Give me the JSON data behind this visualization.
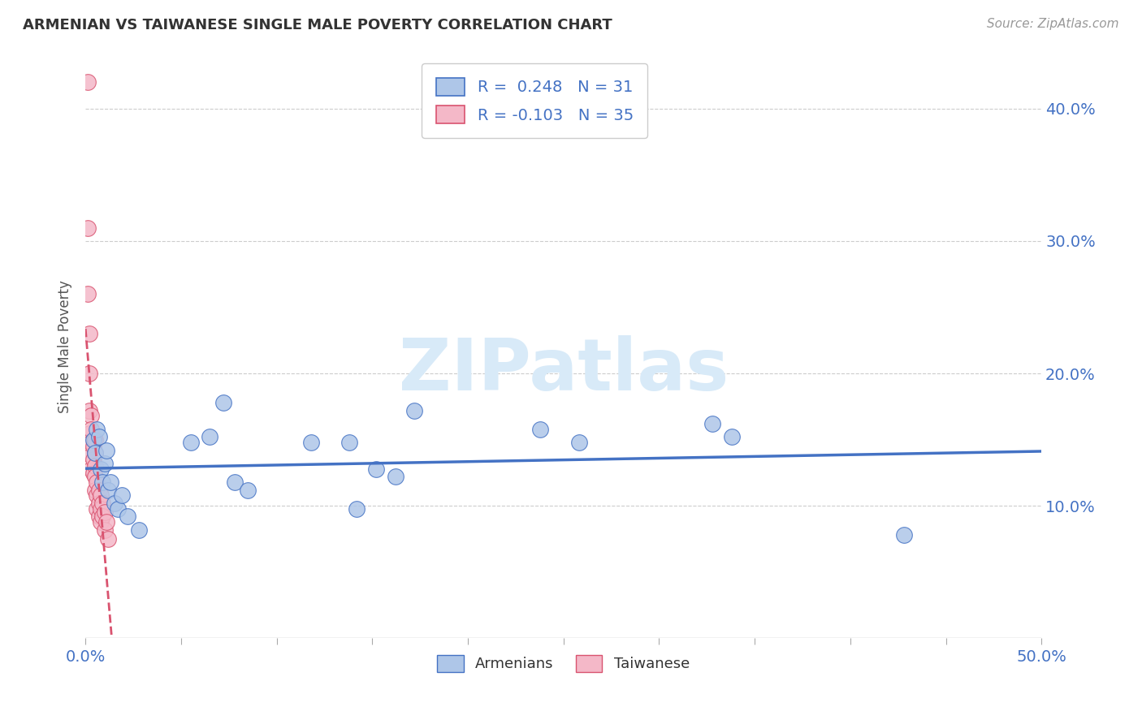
{
  "title": "ARMENIAN VS TAIWANESE SINGLE MALE POVERTY CORRELATION CHART",
  "source": "Source: ZipAtlas.com",
  "ylabel": "Single Male Poverty",
  "xlim": [
    0.0,
    0.5
  ],
  "ylim": [
    0.0,
    0.44
  ],
  "yticks": [
    0.0,
    0.1,
    0.2,
    0.3,
    0.4
  ],
  "ytick_labels": [
    "",
    "10.0%",
    "20.0%",
    "30.0%",
    "40.0%"
  ],
  "xticks": [
    0.0,
    0.05,
    0.1,
    0.15,
    0.2,
    0.25,
    0.3,
    0.35,
    0.4,
    0.45,
    0.5
  ],
  "armenian_R": 0.248,
  "armenian_N": 31,
  "taiwanese_R": -0.103,
  "taiwanese_N": 35,
  "armenian_color": "#aec6e8",
  "armenian_line_color": "#4472c4",
  "taiwanese_color": "#f4b8c8",
  "taiwanese_line_color": "#d9536f",
  "legend_label_armenians": "Armenians",
  "legend_label_taiwanese": "Taiwanese",
  "armenian_x": [
    0.004,
    0.005,
    0.006,
    0.007,
    0.008,
    0.009,
    0.01,
    0.011,
    0.012,
    0.013,
    0.015,
    0.017,
    0.019,
    0.022,
    0.028,
    0.055,
    0.065,
    0.072,
    0.078,
    0.085,
    0.118,
    0.138,
    0.142,
    0.152,
    0.162,
    0.172,
    0.238,
    0.258,
    0.328,
    0.338,
    0.428
  ],
  "armenian_y": [
    0.15,
    0.14,
    0.158,
    0.152,
    0.128,
    0.118,
    0.132,
    0.142,
    0.112,
    0.118,
    0.102,
    0.098,
    0.108,
    0.092,
    0.082,
    0.148,
    0.152,
    0.178,
    0.118,
    0.112,
    0.148,
    0.148,
    0.098,
    0.128,
    0.122,
    0.172,
    0.158,
    0.148,
    0.162,
    0.152,
    0.078
  ],
  "taiwanese_x": [
    0.001,
    0.001,
    0.001,
    0.002,
    0.002,
    0.002,
    0.002,
    0.003,
    0.003,
    0.003,
    0.003,
    0.003,
    0.004,
    0.004,
    0.004,
    0.005,
    0.005,
    0.005,
    0.005,
    0.005,
    0.006,
    0.006,
    0.006,
    0.007,
    0.007,
    0.007,
    0.008,
    0.008,
    0.008,
    0.009,
    0.009,
    0.01,
    0.01,
    0.011,
    0.012
  ],
  "taiwanese_y": [
    0.42,
    0.31,
    0.26,
    0.23,
    0.2,
    0.172,
    0.155,
    0.168,
    0.158,
    0.148,
    0.138,
    0.128,
    0.145,
    0.135,
    0.125,
    0.15,
    0.14,
    0.13,
    0.122,
    0.112,
    0.118,
    0.108,
    0.098,
    0.112,
    0.102,
    0.092,
    0.108,
    0.098,
    0.088,
    0.102,
    0.092,
    0.095,
    0.082,
    0.088,
    0.075
  ],
  "background_color": "#ffffff",
  "grid_color": "#cccccc",
  "watermark_text": "ZIPatlas",
  "watermark_color": "#d8eaf8"
}
